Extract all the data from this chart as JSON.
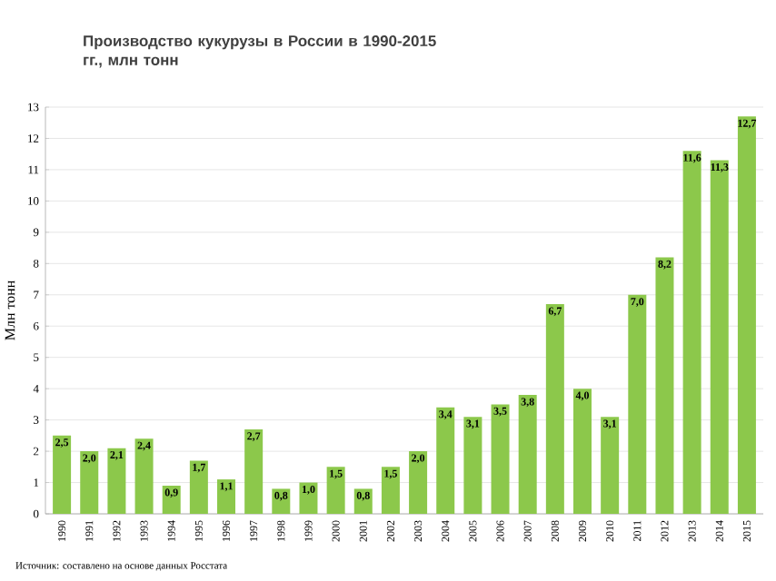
{
  "chart_data": {
    "type": "bar",
    "title": "Производство кукурузы в России в 1990-2015 гг., млн тонн",
    "ylabel": "Млн тонн",
    "categories": [
      "1990",
      "1991",
      "1992",
      "1993",
      "1994",
      "1995",
      "1996",
      "1997",
      "1998",
      "1999",
      "2000",
      "2001",
      "2002",
      "2003",
      "2004",
      "2005",
      "2006",
      "2007",
      "2008",
      "2009",
      "2010",
      "2011",
      "2012",
      "2013",
      "2014",
      "2015"
    ],
    "values": [
      2.5,
      2.0,
      2.1,
      2.4,
      0.9,
      1.7,
      1.1,
      2.7,
      0.8,
      1.0,
      1.5,
      0.8,
      1.5,
      2.0,
      3.4,
      3.1,
      3.5,
      3.8,
      6.7,
      4.0,
      3.1,
      7.0,
      8.2,
      11.6,
      11.3,
      12.7
    ],
    "value_labels": [
      "2,5",
      "2,0",
      "2,1",
      "2,4",
      "0,9",
      "1,7",
      "1,1",
      "2,7",
      "0,8",
      "1,0",
      "1,5",
      "0,8",
      "1,5",
      "2,0",
      "3,4",
      "3,1",
      "3,5",
      "3,8",
      "6,7",
      "4,0",
      "3,1",
      "7,0",
      "8,2",
      "11,6",
      "11,3",
      "12,7"
    ],
    "color": "#8cc84b",
    "ylim": [
      0,
      13
    ],
    "yticks": [
      0,
      1,
      2,
      3,
      4,
      5,
      6,
      7,
      8,
      9,
      10,
      11,
      12,
      13
    ],
    "grid": "y",
    "annotations": [
      "Источник: составлено на основе данных Росстата"
    ]
  }
}
